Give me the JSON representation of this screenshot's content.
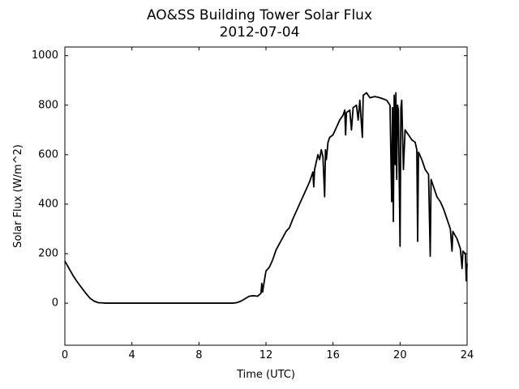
{
  "chart_data": {
    "type": "line",
    "title": "AO&SS Building Tower Solar Flux",
    "subtitle": "2012-07-04",
    "x_label": "Time (UTC)",
    "y_label": "Solar Flux (W/m^2)",
    "xlim": [
      0,
      24
    ],
    "xticks": [
      0,
      4,
      8,
      12,
      16,
      20,
      24
    ],
    "ylim": [
      -170,
      1035
    ],
    "yticks": [
      0,
      200,
      400,
      600,
      800,
      1000
    ],
    "series": [
      {
        "color": "#000000",
        "x": [
          0,
          0.25,
          0.5,
          0.75,
          1.0,
          1.25,
          1.5,
          1.75,
          2.0,
          2.5,
          3,
          4,
          5,
          6,
          7,
          8,
          9,
          10,
          10.25,
          10.5,
          10.75,
          11.0,
          11.25,
          11.5,
          11.7,
          11.75,
          11.8,
          11.9,
          12.0,
          12.2,
          12.4,
          12.6,
          12.8,
          13.0,
          13.2,
          13.4,
          13.6,
          13.8,
          14.0,
          14.2,
          14.4,
          14.6,
          14.8,
          14.85,
          14.9,
          15.0,
          15.1,
          15.2,
          15.3,
          15.4,
          15.5,
          15.55,
          15.6,
          15.7,
          15.8,
          16.0,
          16.2,
          16.4,
          16.6,
          16.7,
          16.75,
          16.8,
          17.0,
          17.1,
          17.2,
          17.4,
          17.5,
          17.6,
          17.75,
          17.8,
          18.0,
          18.2,
          18.5,
          18.8,
          19.0,
          19.2,
          19.3,
          19.4,
          19.5,
          19.55,
          19.6,
          19.65,
          19.7,
          19.75,
          19.8,
          19.85,
          19.9,
          20.0,
          20.05,
          20.1,
          20.2,
          20.3,
          20.5,
          20.7,
          20.9,
          21.0,
          21.05,
          21.1,
          21.3,
          21.4,
          21.5,
          21.7,
          21.8,
          21.85,
          22.0,
          22.2,
          22.4,
          22.6,
          22.8,
          23.0,
          23.1,
          23.15,
          23.4,
          23.6,
          23.7,
          23.75,
          23.9,
          23.95,
          24.0
        ],
        "values": [
          170,
          140,
          110,
          85,
          62,
          40,
          20,
          8,
          2,
          0,
          0,
          0,
          0,
          0,
          0,
          0,
          0,
          0,
          2,
          8,
          18,
          28,
          30,
          28,
          40,
          80,
          45,
          90,
          130,
          145,
          175,
          215,
          240,
          265,
          290,
          305,
          340,
          370,
          400,
          430,
          460,
          490,
          530,
          470,
          540,
          570,
          600,
          580,
          620,
          590,
          430,
          620,
          580,
          650,
          670,
          680,
          710,
          740,
          760,
          780,
          680,
          770,
          780,
          700,
          790,
          800,
          740,
          820,
          670,
          840,
          850,
          830,
          835,
          830,
          825,
          820,
          810,
          800,
          410,
          790,
          330,
          840,
          560,
          850,
          500,
          800,
          780,
          230,
          790,
          820,
          540,
          700,
          680,
          660,
          650,
          620,
          250,
          610,
          580,
          560,
          540,
          520,
          190,
          500,
          470,
          430,
          410,
          380,
          340,
          300,
          210,
          290,
          260,
          220,
          140,
          210,
          200,
          90,
          160
        ]
      }
    ]
  }
}
